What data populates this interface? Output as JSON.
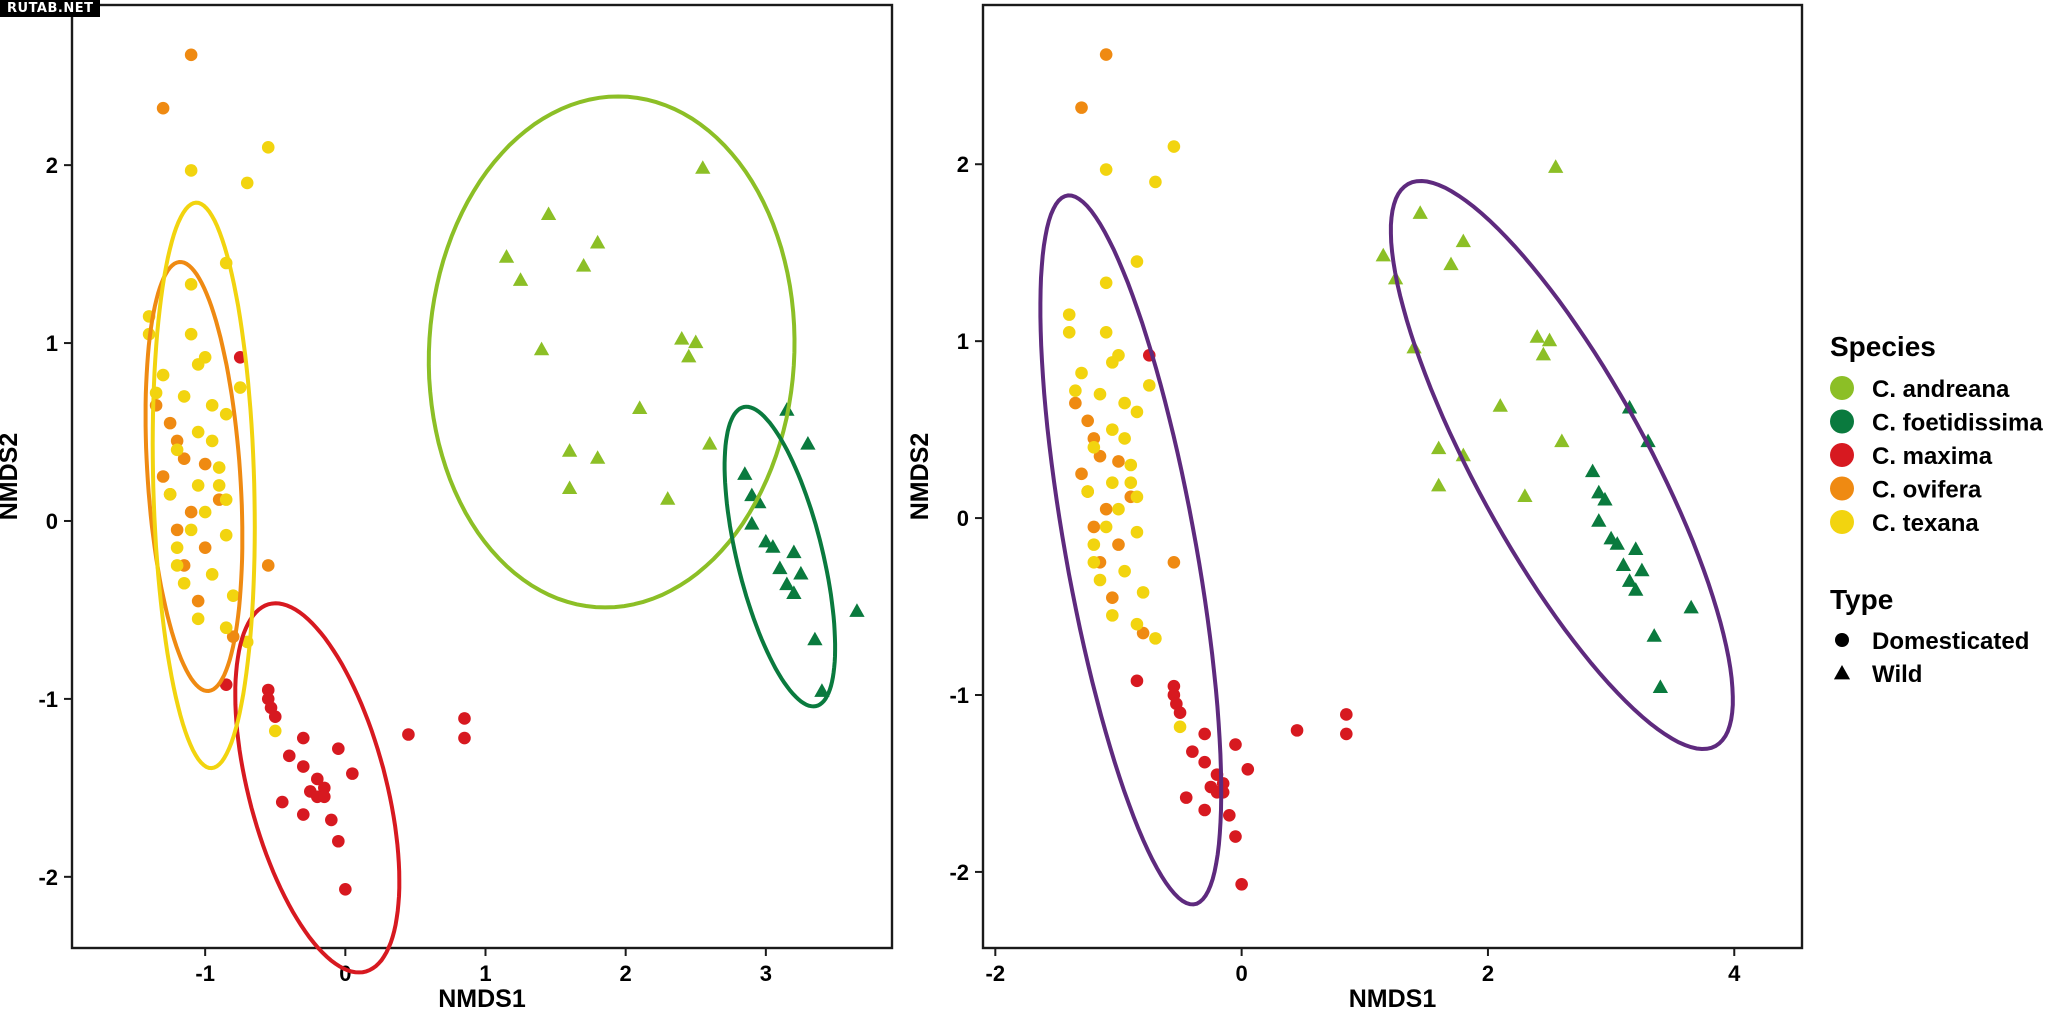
{
  "watermark": "RUTAB.NET",
  "colors": {
    "C. andreana": "#8cbf26",
    "C. foetidissima": "#0a7a3e",
    "C. maxima": "#d71920",
    "C. ovifera": "#ef8a12",
    "C. texana": "#f2d40f",
    "type_ellipse": "#5e2a7e"
  },
  "legend": {
    "species_title": "Species",
    "species": [
      "C. andreana",
      "C. foetidissima",
      "C. maxima",
      "C. ovifera",
      "C. texana"
    ],
    "type_title": "Type",
    "types": [
      {
        "label": "Domesticated",
        "shape": "circle"
      },
      {
        "label": "Wild",
        "shape": "triangle"
      }
    ]
  },
  "chart_data": [
    {
      "type": "scatter",
      "panel": "left",
      "xlabel": "NMDS1",
      "ylabel": "NMDS2",
      "xlim": [
        -1.95,
        3.9
      ],
      "ylim": [
        -2.4,
        2.9
      ],
      "xticks": [
        -1,
        0,
        1,
        2,
        3
      ],
      "yticks": [
        -2,
        -1,
        0,
        1,
        2
      ],
      "xtick_labels": [
        "-1",
        "0",
        "1",
        "2",
        "3"
      ],
      "ytick_labels": [
        "-2",
        "-1",
        "0",
        "1",
        "2"
      ],
      "ellipse_grouping": "Species",
      "ellipses": [
        {
          "group": "C. andreana",
          "center": [
            1.9,
            0.95
          ],
          "semi_axes": [
            1.3,
            1.44
          ],
          "angle": -10
        },
        {
          "group": "C. foetidissima",
          "center": [
            3.1,
            -0.2
          ],
          "semi_axes": [
            0.3,
            0.88
          ],
          "angle": 18
        },
        {
          "group": "C. maxima",
          "center": [
            -0.2,
            -1.5
          ],
          "semi_axes": [
            0.48,
            1.09
          ],
          "angle": 20
        },
        {
          "group": "C. ovifera",
          "center": [
            -1.08,
            0.25
          ],
          "semi_axes": [
            0.33,
            1.21
          ],
          "angle": 5
        },
        {
          "group": "C. texana",
          "center": [
            -1.01,
            0.2
          ],
          "semi_axes": [
            0.36,
            1.59
          ],
          "angle": 2
        }
      ]
    },
    {
      "type": "scatter",
      "panel": "right",
      "xlabel": "NMDS1",
      "ylabel": "NMDS2",
      "xlim": [
        -2.1,
        4.55
      ],
      "ylim": [
        -2.43,
        2.9
      ],
      "xticks": [
        -2,
        0,
        2,
        4
      ],
      "yticks": [
        -2,
        -1,
        0,
        1,
        2
      ],
      "xtick_labels": [
        "-2",
        "0",
        "2",
        "4"
      ],
      "ytick_labels": [
        "-2",
        "-1",
        "0",
        "1",
        "2"
      ],
      "ellipse_grouping": "Type",
      "ellipses": [
        {
          "group": "Domesticated",
          "center": [
            -0.9,
            -0.18
          ],
          "semi_axes": [
            0.52,
            2.07
          ],
          "angle": 15
        },
        {
          "group": "Wild",
          "center": [
            2.6,
            0.3
          ],
          "semi_axes": [
            0.62,
            2.03
          ],
          "angle": 40
        }
      ]
    }
  ],
  "points": {
    "columns": [
      "species",
      "type",
      "nmds1",
      "nmds2"
    ],
    "rows": [
      [
        "C. andreana",
        "Wild",
        2.55,
        1.98
      ],
      [
        "C. andreana",
        "Wild",
        1.45,
        1.72
      ],
      [
        "C. andreana",
        "Wild",
        1.8,
        1.56
      ],
      [
        "C. andreana",
        "Wild",
        1.15,
        1.48
      ],
      [
        "C. andreana",
        "Wild",
        1.7,
        1.43
      ],
      [
        "C. andreana",
        "Wild",
        1.25,
        1.35
      ],
      [
        "C. andreana",
        "Wild",
        2.4,
        1.02
      ],
      [
        "C. andreana",
        "Wild",
        2.5,
        1.0
      ],
      [
        "C. andreana",
        "Wild",
        1.4,
        0.96
      ],
      [
        "C. andreana",
        "Wild",
        2.45,
        0.92
      ],
      [
        "C. andreana",
        "Wild",
        2.1,
        0.63
      ],
      [
        "C. andreana",
        "Wild",
        2.6,
        0.43
      ],
      [
        "C. andreana",
        "Wild",
        1.6,
        0.39
      ],
      [
        "C. andreana",
        "Wild",
        1.8,
        0.35
      ],
      [
        "C. andreana",
        "Wild",
        1.6,
        0.18
      ],
      [
        "C. andreana",
        "Wild",
        2.3,
        0.12
      ],
      [
        "C. foetidissima",
        "Wild",
        3.15,
        0.62
      ],
      [
        "C. foetidissima",
        "Wild",
        3.3,
        0.43
      ],
      [
        "C. foetidissima",
        "Wild",
        2.85,
        0.26
      ],
      [
        "C. foetidissima",
        "Wild",
        2.9,
        0.14
      ],
      [
        "C. foetidissima",
        "Wild",
        2.95,
        0.1
      ],
      [
        "C. foetidissima",
        "Wild",
        2.9,
        -0.02
      ],
      [
        "C. foetidissima",
        "Wild",
        3.0,
        -0.12
      ],
      [
        "C. foetidissima",
        "Wild",
        3.05,
        -0.15
      ],
      [
        "C. foetidissima",
        "Wild",
        3.2,
        -0.18
      ],
      [
        "C. foetidissima",
        "Wild",
        3.1,
        -0.27
      ],
      [
        "C. foetidissima",
        "Wild",
        3.25,
        -0.3
      ],
      [
        "C. foetidissima",
        "Wild",
        3.15,
        -0.36
      ],
      [
        "C. foetidissima",
        "Wild",
        3.2,
        -0.41
      ],
      [
        "C. foetidissima",
        "Wild",
        3.65,
        -0.51
      ],
      [
        "C. foetidissima",
        "Wild",
        3.35,
        -0.67
      ],
      [
        "C. foetidissima",
        "Wild",
        3.4,
        -0.96
      ],
      [
        "C. maxima",
        "Domesticated",
        -0.75,
        0.92
      ],
      [
        "C. maxima",
        "Domesticated",
        -0.85,
        -0.92
      ],
      [
        "C. maxima",
        "Domesticated",
        -0.55,
        -0.95
      ],
      [
        "C. maxima",
        "Domesticated",
        -0.55,
        -1.0
      ],
      [
        "C. maxima",
        "Domesticated",
        -0.53,
        -1.05
      ],
      [
        "C. maxima",
        "Domesticated",
        -0.5,
        -1.1
      ],
      [
        "C. maxima",
        "Domesticated",
        -0.3,
        -1.22
      ],
      [
        "C. maxima",
        "Domesticated",
        -0.4,
        -1.32
      ],
      [
        "C. maxima",
        "Domesticated",
        -0.3,
        -1.38
      ],
      [
        "C. maxima",
        "Domesticated",
        -0.2,
        -1.45
      ],
      [
        "C. maxima",
        "Domesticated",
        -0.15,
        -1.5
      ],
      [
        "C. maxima",
        "Domesticated",
        -0.25,
        -1.52
      ],
      [
        "C. maxima",
        "Domesticated",
        -0.2,
        -1.55
      ],
      [
        "C. maxima",
        "Domesticated",
        -0.15,
        -1.55
      ],
      [
        "C. maxima",
        "Domesticated",
        -0.45,
        -1.58
      ],
      [
        "C. maxima",
        "Domesticated",
        -0.3,
        -1.65
      ],
      [
        "C. maxima",
        "Domesticated",
        -0.1,
        -1.68
      ],
      [
        "C. maxima",
        "Domesticated",
        -0.05,
        -1.8
      ],
      [
        "C. maxima",
        "Domesticated",
        -0.05,
        -1.28
      ],
      [
        "C. maxima",
        "Domesticated",
        0.05,
        -1.42
      ],
      [
        "C. maxima",
        "Domesticated",
        0.0,
        -2.07
      ],
      [
        "C. maxima",
        "Domesticated",
        0.45,
        -1.2
      ],
      [
        "C. maxima",
        "Domesticated",
        0.85,
        -1.11
      ],
      [
        "C. maxima",
        "Domesticated",
        0.85,
        -1.22
      ],
      [
        "C. ovifera",
        "Domesticated",
        -1.1,
        2.62
      ],
      [
        "C. ovifera",
        "Domesticated",
        -1.3,
        2.32
      ],
      [
        "C. ovifera",
        "Domesticated",
        -1.35,
        0.65
      ],
      [
        "C. ovifera",
        "Domesticated",
        -1.25,
        0.55
      ],
      [
        "C. ovifera",
        "Domesticated",
        -1.2,
        0.45
      ],
      [
        "C. ovifera",
        "Domesticated",
        -1.15,
        0.35
      ],
      [
        "C. ovifera",
        "Domesticated",
        -1.3,
        0.25
      ],
      [
        "C. ovifera",
        "Domesticated",
        -1.25,
        0.15
      ],
      [
        "C. ovifera",
        "Domesticated",
        -1.1,
        0.05
      ],
      [
        "C. ovifera",
        "Domesticated",
        -1.2,
        -0.05
      ],
      [
        "C. ovifera",
        "Domesticated",
        -1.0,
        -0.15
      ],
      [
        "C. ovifera",
        "Domesticated",
        -1.15,
        -0.25
      ],
      [
        "C. ovifera",
        "Domesticated",
        -0.55,
        -0.25
      ],
      [
        "C. ovifera",
        "Domesticated",
        -1.05,
        -0.45
      ],
      [
        "C. ovifera",
        "Domesticated",
        -0.8,
        -0.65
      ],
      [
        "C. ovifera",
        "Domesticated",
        -1.0,
        0.32
      ],
      [
        "C. ovifera",
        "Domesticated",
        -0.9,
        0.12
      ],
      [
        "C. texana",
        "Domesticated",
        -0.55,
        2.1
      ],
      [
        "C. texana",
        "Domesticated",
        -1.1,
        1.97
      ],
      [
        "C. texana",
        "Domesticated",
        -0.7,
        1.9
      ],
      [
        "C. texana",
        "Domesticated",
        -0.85,
        1.45
      ],
      [
        "C. texana",
        "Domesticated",
        -1.1,
        1.33
      ],
      [
        "C. texana",
        "Domesticated",
        -1.4,
        1.15
      ],
      [
        "C. texana",
        "Domesticated",
        -1.4,
        1.05
      ],
      [
        "C. texana",
        "Domesticated",
        -1.1,
        1.05
      ],
      [
        "C. texana",
        "Domesticated",
        -1.0,
        0.92
      ],
      [
        "C. texana",
        "Domesticated",
        -1.05,
        0.88
      ],
      [
        "C. texana",
        "Domesticated",
        -1.3,
        0.82
      ],
      [
        "C. texana",
        "Domesticated",
        -0.75,
        0.75
      ],
      [
        "C. texana",
        "Domesticated",
        -1.35,
        0.72
      ],
      [
        "C. texana",
        "Domesticated",
        -1.15,
        0.7
      ],
      [
        "C. texana",
        "Domesticated",
        -0.95,
        0.65
      ],
      [
        "C. texana",
        "Domesticated",
        -0.85,
        0.6
      ],
      [
        "C. texana",
        "Domesticated",
        -1.05,
        0.5
      ],
      [
        "C. texana",
        "Domesticated",
        -0.95,
        0.45
      ],
      [
        "C. texana",
        "Domesticated",
        -1.2,
        0.4
      ],
      [
        "C. texana",
        "Domesticated",
        -0.9,
        0.3
      ],
      [
        "C. texana",
        "Domesticated",
        -1.05,
        0.2
      ],
      [
        "C. texana",
        "Domesticated",
        -1.25,
        0.15
      ],
      [
        "C. texana",
        "Domesticated",
        -0.85,
        0.12
      ],
      [
        "C. texana",
        "Domesticated",
        -1.0,
        0.05
      ],
      [
        "C. texana",
        "Domesticated",
        -1.1,
        -0.05
      ],
      [
        "C. texana",
        "Domesticated",
        -0.85,
        -0.08
      ],
      [
        "C. texana",
        "Domesticated",
        -1.2,
        -0.15
      ],
      [
        "C. texana",
        "Domesticated",
        -0.95,
        -0.3
      ],
      [
        "C. texana",
        "Domesticated",
        -1.15,
        -0.35
      ],
      [
        "C. texana",
        "Domesticated",
        -0.8,
        -0.42
      ],
      [
        "C. texana",
        "Domesticated",
        -1.05,
        -0.55
      ],
      [
        "C. texana",
        "Domesticated",
        -0.85,
        -0.6
      ],
      [
        "C. texana",
        "Domesticated",
        -0.7,
        -0.68
      ],
      [
        "C. texana",
        "Domesticated",
        -0.5,
        -1.18
      ],
      [
        "C. texana",
        "Domesticated",
        -1.2,
        -0.25
      ],
      [
        "C. texana",
        "Domesticated",
        -0.9,
        0.2
      ]
    ]
  }
}
